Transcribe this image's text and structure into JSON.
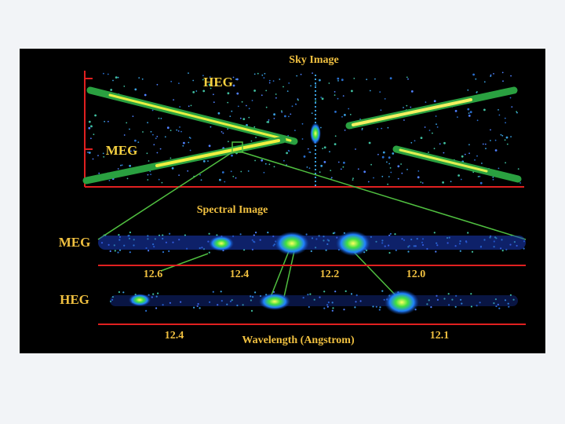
{
  "figure": {
    "sky": {
      "title": "Sky Image",
      "heg_label": "HEG",
      "meg_label": "MEG"
    },
    "spectral": {
      "title": "Spectral Image",
      "meg": {
        "label": "MEG",
        "ticks": [
          "12.6",
          "12.4",
          "12.2",
          "12.0"
        ]
      },
      "heg": {
        "label": "HEG",
        "ticks": [
          "12.4",
          "12.1"
        ]
      },
      "axis_label": "Wavelength (Angstrom)"
    }
  }
}
